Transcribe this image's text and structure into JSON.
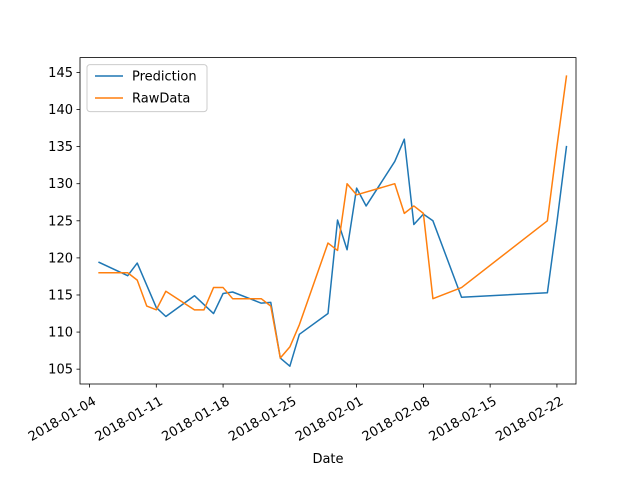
{
  "chart_data": {
    "type": "line",
    "title": "",
    "xlabel": "Date",
    "ylabel": "",
    "x_type": "date",
    "xlim": [
      "2018-01-03",
      "2018-02-24"
    ],
    "ylim": [
      103.0,
      147.0
    ],
    "x_ticks": [
      "2018-01-04",
      "2018-01-11",
      "2018-01-18",
      "2018-01-25",
      "2018-02-01",
      "2018-02-08",
      "2018-02-15",
      "2018-02-22"
    ],
    "y_ticks": [
      105,
      110,
      115,
      120,
      125,
      130,
      135,
      140,
      145
    ],
    "grid": false,
    "legend": {
      "position": "top-left"
    },
    "series": [
      {
        "name": "Prediction",
        "color": "#1f77b4",
        "points": [
          [
            "2018-01-05",
            119.4
          ],
          [
            "2018-01-08",
            117.6
          ],
          [
            "2018-01-09",
            119.3
          ],
          [
            "2018-01-11",
            113.3
          ],
          [
            "2018-01-12",
            112.1
          ],
          [
            "2018-01-15",
            114.9
          ],
          [
            "2018-01-17",
            112.5
          ],
          [
            "2018-01-18",
            115.2
          ],
          [
            "2018-01-19",
            115.4
          ],
          [
            "2018-01-22",
            113.9
          ],
          [
            "2018-01-23",
            114.0
          ],
          [
            "2018-01-24",
            106.5
          ],
          [
            "2018-01-25",
            105.4
          ],
          [
            "2018-01-26",
            109.7
          ],
          [
            "2018-01-29",
            112.5
          ],
          [
            "2018-01-30",
            125.1
          ],
          [
            "2018-01-31",
            121.1
          ],
          [
            "2018-02-01",
            129.4
          ],
          [
            "2018-02-02",
            127.0
          ],
          [
            "2018-02-05",
            133.0
          ],
          [
            "2018-02-06",
            136.0
          ],
          [
            "2018-02-07",
            124.5
          ],
          [
            "2018-02-08",
            125.9
          ],
          [
            "2018-02-09",
            125.0
          ],
          [
            "2018-02-12",
            114.7
          ],
          [
            "2018-02-21",
            115.3
          ],
          [
            "2018-02-22",
            124.8
          ],
          [
            "2018-02-23",
            135.0
          ]
        ]
      },
      {
        "name": "RawData",
        "color": "#ff7f0e",
        "points": [
          [
            "2018-01-05",
            118.0
          ],
          [
            "2018-01-08",
            118.0
          ],
          [
            "2018-01-09",
            117.0
          ],
          [
            "2018-01-10",
            113.5
          ],
          [
            "2018-01-11",
            113.0
          ],
          [
            "2018-01-12",
            115.5
          ],
          [
            "2018-01-15",
            113.0
          ],
          [
            "2018-01-16",
            113.0
          ],
          [
            "2018-01-17",
            116.0
          ],
          [
            "2018-01-18",
            116.0
          ],
          [
            "2018-01-19",
            114.5
          ],
          [
            "2018-01-22",
            114.5
          ],
          [
            "2018-01-23",
            113.5
          ],
          [
            "2018-01-24",
            106.5
          ],
          [
            "2018-01-25",
            108.0
          ],
          [
            "2018-01-26",
            111.0
          ],
          [
            "2018-01-29",
            122.0
          ],
          [
            "2018-01-30",
            121.0
          ],
          [
            "2018-01-31",
            130.0
          ],
          [
            "2018-02-01",
            128.5
          ],
          [
            "2018-02-05",
            130.0
          ],
          [
            "2018-02-06",
            126.0
          ],
          [
            "2018-02-07",
            127.0
          ],
          [
            "2018-02-08",
            126.0
          ],
          [
            "2018-02-09",
            114.5
          ],
          [
            "2018-02-12",
            116.0
          ],
          [
            "2018-02-21",
            125.0
          ],
          [
            "2018-02-22",
            135.0
          ],
          [
            "2018-02-23",
            144.5
          ]
        ]
      }
    ]
  }
}
